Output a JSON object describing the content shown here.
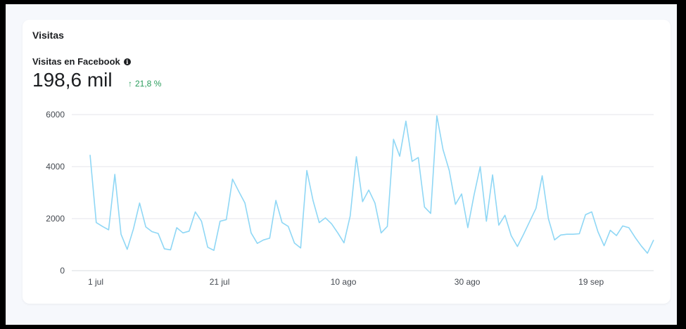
{
  "card": {
    "title": "Visitas",
    "metric_label": "Visitas en Facebook",
    "info_icon": "info-circle-icon",
    "value": "198,6 mil",
    "delta_arrow": "↑",
    "delta_text": "21,8 %",
    "delta_color": "#2a9d5c"
  },
  "chart_data": {
    "type": "line",
    "title": "",
    "xlabel": "",
    "ylabel": "",
    "ylim": [
      0,
      6000
    ],
    "yticks": [
      0,
      2000,
      4000,
      6000
    ],
    "xtick_labels": [
      "1 jul",
      "21 jul",
      "10 ago",
      "30 ago",
      "19 sep"
    ],
    "xtick_indices": [
      0,
      20,
      40,
      60,
      80
    ],
    "grid": true,
    "line_color": "#8fd7f5",
    "series": [
      {
        "values": [
          4450,
          1850,
          1700,
          1570,
          3700,
          1400,
          820,
          1600,
          2600,
          1680,
          1500,
          1430,
          840,
          800,
          1650,
          1450,
          1520,
          2260,
          1900,
          900,
          780,
          1900,
          1960,
          3520,
          3050,
          2600,
          1450,
          1050,
          1180,
          1250,
          2700,
          1850,
          1700,
          1060,
          870,
          3850,
          2700,
          1850,
          2030,
          1800,
          1450,
          1070,
          2100,
          4380,
          2650,
          3100,
          2600,
          1450,
          1700,
          5050,
          4400,
          5750,
          4200,
          4350,
          2450,
          2200,
          5950,
          4650,
          3850,
          2550,
          2950,
          1650,
          2900,
          4000,
          1900,
          3680,
          1750,
          2130,
          1350,
          930,
          1400,
          1900,
          2400,
          3650,
          2000,
          1180,
          1370,
          1400,
          1400,
          1420,
          2150,
          2260,
          1500,
          960,
          1550,
          1350,
          1720,
          1650,
          1280,
          950,
          670,
          1180
        ]
      }
    ]
  }
}
